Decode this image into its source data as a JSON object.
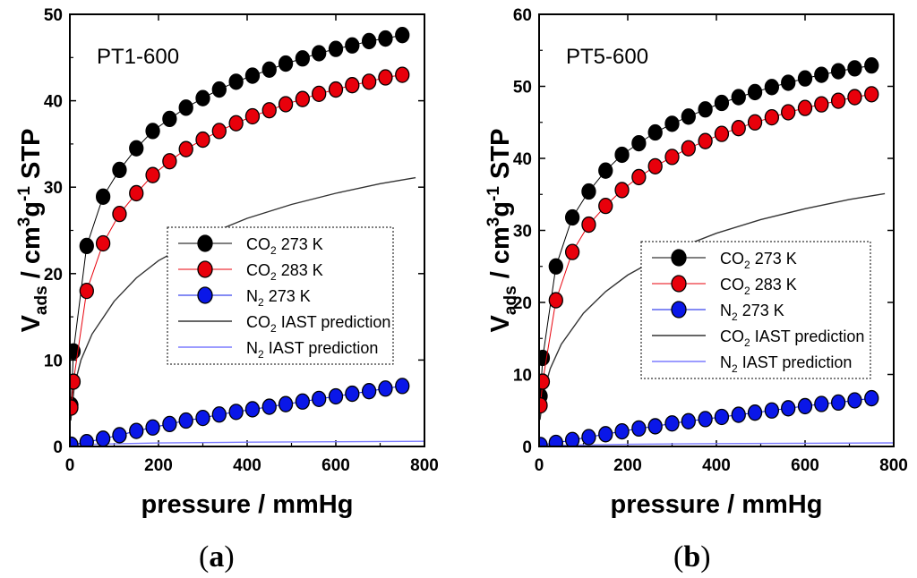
{
  "figure": {
    "caption_a": {
      "open": "(",
      "letter": "a",
      "close": ")"
    },
    "caption_b": {
      "open": "(",
      "letter": "b",
      "close": ")"
    }
  },
  "colors": {
    "co2_273": "#000000",
    "co2_283": "#e8000b",
    "n2_273": "#0a17e8",
    "co2_iast": "#333333",
    "n2_iast": "#7b7bff"
  },
  "chart_data": [
    {
      "type": "scatter",
      "panel": "a",
      "title": "PT1-600",
      "xlabel": "pressure / mmHg",
      "ylabel": {
        "main": "V",
        "sub": "ads",
        "rest": " / cm",
        "sup1": "3",
        "mid": "g",
        "sup2": "-1",
        "end": " STP"
      },
      "xlim": [
        0,
        800
      ],
      "ylim": [
        0,
        50
      ],
      "xticks": [
        0,
        200,
        400,
        600,
        800
      ],
      "yticks": [
        0,
        10,
        20,
        30,
        40,
        50
      ],
      "legend_position": "center-right",
      "series": [
        {
          "name": "CO2 273 K",
          "name_main": "CO",
          "name_sub": "2",
          "name_rest": " 273 K",
          "kind": "markers",
          "color": "#000000",
          "x": [
            3,
            8,
            38,
            75,
            112,
            150,
            187,
            225,
            262,
            300,
            337,
            375,
            412,
            450,
            487,
            525,
            562,
            600,
            637,
            675,
            712,
            750
          ],
          "y": [
            4.8,
            11.0,
            23.2,
            28.9,
            32.0,
            34.5,
            36.5,
            37.9,
            39.2,
            40.3,
            41.3,
            42.2,
            42.9,
            43.6,
            44.3,
            44.9,
            45.5,
            46.0,
            46.4,
            46.9,
            47.2,
            47.6
          ]
        },
        {
          "name": "CO2 283 K",
          "name_main": "CO",
          "name_sub": "2",
          "name_rest": " 283 K",
          "kind": "markers",
          "color": "#e8000b",
          "x": [
            3,
            8,
            38,
            75,
            112,
            150,
            187,
            225,
            262,
            300,
            337,
            375,
            412,
            450,
            487,
            525,
            562,
            600,
            637,
            675,
            712,
            750
          ],
          "y": [
            4.5,
            7.5,
            18.0,
            23.5,
            26.9,
            29.3,
            31.4,
            33.0,
            34.4,
            35.5,
            36.5,
            37.4,
            38.2,
            38.9,
            39.6,
            40.2,
            40.8,
            41.3,
            41.8,
            42.2,
            42.7,
            43.0
          ]
        },
        {
          "name": "N2 273 K",
          "name_main": "N",
          "name_sub": "2",
          "name_rest": " 273 K",
          "kind": "markers",
          "color": "#0a17e8",
          "x": [
            3,
            38,
            75,
            112,
            150,
            187,
            225,
            262,
            300,
            337,
            375,
            412,
            450,
            487,
            525,
            562,
            600,
            637,
            675,
            712,
            750
          ],
          "y": [
            0.2,
            0.5,
            0.9,
            1.3,
            1.8,
            2.2,
            2.6,
            3.0,
            3.3,
            3.7,
            4.0,
            4.3,
            4.6,
            4.9,
            5.2,
            5.5,
            5.8,
            6.1,
            6.4,
            6.7,
            7.0
          ]
        },
        {
          "name": "CO2 IAST prediction",
          "name_main": "CO",
          "name_sub": "2",
          "name_rest": " IAST prediction",
          "kind": "line",
          "color": "#333333",
          "x": [
            2,
            10,
            25,
            50,
            100,
            150,
            200,
            300,
            400,
            500,
            600,
            700,
            780
          ],
          "y": [
            3.0,
            7.0,
            10.0,
            13.0,
            16.8,
            19.5,
            21.5,
            24.3,
            26.4,
            28.0,
            29.3,
            30.4,
            31.1
          ]
        },
        {
          "name": "N2 IAST prediction",
          "name_main": "N",
          "name_sub": "2",
          "name_rest": " IAST prediction",
          "kind": "line",
          "color": "#7b7bff",
          "x": [
            0,
            200,
            400,
            600,
            800
          ],
          "y": [
            0.2,
            0.4,
            0.5,
            0.55,
            0.6
          ]
        }
      ]
    },
    {
      "type": "scatter",
      "panel": "b",
      "title": "PT5-600",
      "xlabel": "pressure / mmHg",
      "ylabel": {
        "main": "V",
        "sub": "ads",
        "rest": " / cm",
        "sup1": "3",
        "mid": "g",
        "sup2": "-1",
        "end": " STP"
      },
      "xlim": [
        0,
        800
      ],
      "ylim": [
        0,
        60
      ],
      "xticks": [
        0,
        200,
        400,
        600,
        800
      ],
      "yticks": [
        0,
        10,
        20,
        30,
        40,
        50,
        60
      ],
      "legend_position": "center-right",
      "series": [
        {
          "name": "CO2 273 K",
          "name_main": "CO",
          "name_sub": "2",
          "name_rest": " 273 K",
          "kind": "markers",
          "color": "#000000",
          "x": [
            3,
            8,
            38,
            75,
            112,
            150,
            187,
            225,
            262,
            300,
            337,
            375,
            412,
            450,
            487,
            525,
            562,
            600,
            637,
            675,
            712,
            750
          ],
          "y": [
            7.0,
            12.3,
            25.0,
            31.8,
            35.4,
            38.3,
            40.5,
            42.1,
            43.6,
            44.8,
            45.8,
            46.8,
            47.7,
            48.5,
            49.2,
            49.9,
            50.5,
            51.1,
            51.6,
            52.1,
            52.5,
            52.9
          ]
        },
        {
          "name": "CO2 283 K",
          "name_main": "CO",
          "name_sub": "2",
          "name_rest": " 283 K",
          "kind": "markers",
          "color": "#e8000b",
          "x": [
            3,
            8,
            38,
            75,
            112,
            150,
            187,
            225,
            262,
            300,
            337,
            375,
            412,
            450,
            487,
            525,
            562,
            600,
            637,
            675,
            712,
            750
          ],
          "y": [
            5.7,
            9.0,
            20.3,
            27.0,
            30.8,
            33.4,
            35.6,
            37.4,
            38.9,
            40.2,
            41.4,
            42.4,
            43.4,
            44.2,
            45.0,
            45.7,
            46.4,
            47.0,
            47.5,
            48.0,
            48.5,
            48.9
          ]
        },
        {
          "name": "N2 273 K",
          "name_main": "N",
          "name_sub": "2",
          "name_rest": " 273 K",
          "kind": "markers",
          "color": "#0a17e8",
          "x": [
            3,
            38,
            75,
            112,
            150,
            187,
            225,
            262,
            300,
            337,
            375,
            412,
            450,
            487,
            525,
            562,
            600,
            637,
            675,
            712,
            750
          ],
          "y": [
            0.2,
            0.5,
            0.9,
            1.3,
            1.7,
            2.1,
            2.5,
            2.8,
            3.2,
            3.5,
            3.8,
            4.1,
            4.4,
            4.7,
            5.0,
            5.3,
            5.6,
            5.9,
            6.1,
            6.4,
            6.7
          ]
        },
        {
          "name": "CO2 IAST prediction",
          "name_main": "CO",
          "name_sub": "2",
          "name_rest": " IAST prediction",
          "kind": "line",
          "color": "#333333",
          "x": [
            2,
            10,
            25,
            50,
            100,
            150,
            200,
            300,
            400,
            500,
            600,
            700,
            780
          ],
          "y": [
            3.7,
            7.5,
            10.8,
            14.2,
            18.5,
            21.5,
            23.8,
            27.2,
            29.6,
            31.5,
            33.0,
            34.3,
            35.1
          ]
        },
        {
          "name": "N2 IAST prediction",
          "name_main": "N",
          "name_sub": "2",
          "name_rest": " IAST prediction",
          "kind": "line",
          "color": "#7b7bff",
          "x": [
            0,
            200,
            400,
            600,
            800
          ],
          "y": [
            0.15,
            0.3,
            0.4,
            0.45,
            0.5
          ]
        }
      ]
    }
  ]
}
